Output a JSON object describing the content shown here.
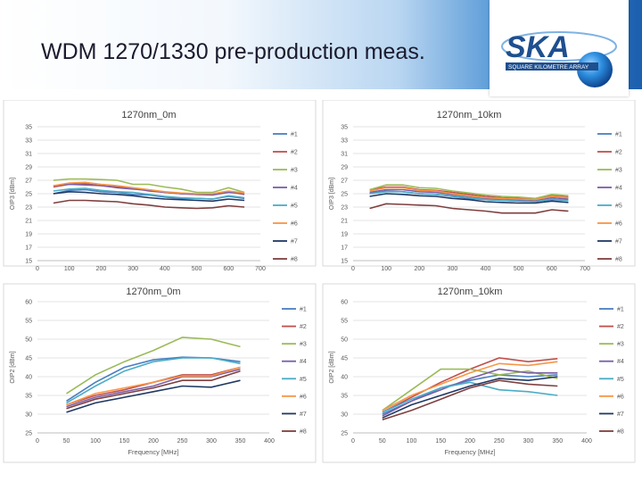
{
  "slide": {
    "title": "WDM 1270/1330 pre-production meas.",
    "logo_text": "SKA",
    "logo_subtext": "SQUARE KILOMETRE ARRAY"
  },
  "colors": {
    "series": [
      "#4a7fc1",
      "#c0504d",
      "#9bbb59",
      "#7b5ea7",
      "#4bacc6",
      "#f79646",
      "#1f3864",
      "#7f3f3f"
    ],
    "header_dark": "#1b5fae"
  },
  "chart_data": [
    {
      "type": "line",
      "title": "1270nm_0m",
      "xlabel": "",
      "ylabel": "OIP3 [dBm]",
      "xlim": [
        0,
        700
      ],
      "ylim": [
        15,
        35
      ],
      "xticks": [
        0,
        100,
        200,
        300,
        400,
        500,
        600,
        700
      ],
      "yticks": [
        15,
        17,
        19,
        21,
        23,
        25,
        27,
        29,
        31,
        33,
        35
      ],
      "grid": true,
      "legend": "right",
      "x": [
        50,
        100,
        150,
        200,
        250,
        300,
        350,
        400,
        450,
        500,
        550,
        600,
        650
      ],
      "series": [
        {
          "name": "#1",
          "values": [
            25.0,
            25.5,
            25.6,
            25.3,
            25.2,
            24.9,
            24.8,
            24.5,
            24.3,
            24.3,
            24.2,
            24.6,
            24.3
          ]
        },
        {
          "name": "#2",
          "values": [
            26.0,
            26.4,
            26.5,
            26.2,
            26.0,
            25.8,
            25.4,
            25.2,
            25.0,
            24.9,
            24.9,
            25.3,
            24.9
          ]
        },
        {
          "name": "#3",
          "values": [
            27.0,
            27.2,
            27.2,
            27.1,
            27.0,
            26.4,
            26.4,
            26.0,
            25.7,
            25.2,
            25.2,
            25.9,
            25.2
          ]
        },
        {
          "name": "#4",
          "values": [
            26.2,
            26.4,
            26.3,
            26.2,
            25.9,
            25.7,
            25.5,
            25.2,
            25.0,
            24.9,
            24.8,
            25.2,
            25.0
          ]
        },
        {
          "name": "#5",
          "values": [
            25.4,
            25.7,
            25.8,
            25.5,
            25.3,
            25.2,
            24.9,
            24.6,
            24.4,
            24.3,
            24.2,
            24.7,
            24.4
          ]
        },
        {
          "name": "#6",
          "values": [
            26.2,
            26.6,
            26.7,
            26.4,
            26.2,
            25.9,
            25.6,
            25.3,
            25.1,
            25.0,
            25.0,
            25.4,
            25.1
          ]
        },
        {
          "name": "#7",
          "values": [
            25.0,
            25.3,
            25.2,
            25.0,
            24.9,
            24.7,
            24.4,
            24.2,
            24.1,
            24.0,
            23.9,
            24.2,
            24.0
          ]
        },
        {
          "name": "#8",
          "values": [
            23.6,
            24.0,
            24.0,
            23.9,
            23.8,
            23.5,
            23.3,
            23.0,
            22.9,
            22.8,
            22.9,
            23.2,
            23.0
          ]
        }
      ]
    },
    {
      "type": "line",
      "title": "1270nm_10km",
      "xlabel": "",
      "ylabel": "OIP3 [dBm]",
      "xlim": [
        0,
        700
      ],
      "ylim": [
        15,
        35
      ],
      "xticks": [
        0,
        100,
        200,
        300,
        400,
        500,
        600,
        700
      ],
      "yticks": [
        15,
        17,
        19,
        21,
        23,
        25,
        27,
        29,
        31,
        33,
        35
      ],
      "grid": true,
      "legend": "right",
      "x": [
        50,
        100,
        150,
        200,
        250,
        300,
        350,
        400,
        450,
        500,
        550,
        600,
        650
      ],
      "series": [
        {
          "name": "#1",
          "values": [
            25.0,
            25.4,
            25.3,
            25.0,
            24.9,
            24.6,
            24.3,
            24.1,
            24.0,
            23.9,
            23.8,
            24.1,
            24.0
          ]
        },
        {
          "name": "#2",
          "values": [
            25.6,
            26.0,
            26.0,
            25.6,
            25.5,
            25.2,
            24.9,
            24.6,
            24.4,
            24.3,
            24.2,
            24.7,
            24.5
          ]
        },
        {
          "name": "#3",
          "values": [
            25.6,
            26.3,
            26.3,
            25.9,
            25.8,
            25.4,
            25.1,
            24.8,
            24.6,
            24.5,
            24.3,
            24.9,
            24.7
          ]
        },
        {
          "name": "#4",
          "values": [
            25.2,
            25.6,
            25.6,
            25.3,
            25.2,
            24.9,
            24.6,
            24.3,
            24.2,
            24.1,
            24.0,
            24.4,
            24.2
          ]
        },
        {
          "name": "#5",
          "values": [
            25.0,
            25.3,
            25.3,
            25.0,
            24.9,
            24.7,
            24.4,
            24.1,
            24.0,
            23.9,
            23.8,
            24.2,
            24.0
          ]
        },
        {
          "name": "#6",
          "values": [
            25.4,
            25.9,
            25.9,
            25.5,
            25.4,
            25.0,
            24.7,
            24.4,
            24.3,
            24.2,
            24.1,
            24.6,
            24.4
          ]
        },
        {
          "name": "#7",
          "values": [
            24.6,
            25.0,
            24.9,
            24.7,
            24.6,
            24.3,
            24.1,
            23.8,
            23.7,
            23.6,
            23.6,
            23.9,
            23.7
          ]
        },
        {
          "name": "#8",
          "values": [
            22.8,
            23.5,
            23.4,
            23.3,
            23.2,
            22.8,
            22.6,
            22.4,
            22.1,
            22.1,
            22.1,
            22.6,
            22.4
          ]
        }
      ]
    },
    {
      "type": "line",
      "title": "1270nm_0m",
      "xlabel": "Frequency [MHz]",
      "ylabel": "OIP2 [dBm]",
      "xlim": [
        0,
        400
      ],
      "ylim": [
        25,
        60
      ],
      "xticks": [
        0,
        50,
        100,
        150,
        200,
        250,
        300,
        350,
        400
      ],
      "yticks": [
        25,
        30,
        35,
        40,
        45,
        50,
        55,
        60
      ],
      "grid": true,
      "legend": "right",
      "x": [
        50,
        100,
        150,
        200,
        250,
        300,
        350
      ],
      "series": [
        {
          "name": "#1",
          "values": [
            33.5,
            38.5,
            42.5,
            44.5,
            45.2,
            45.0,
            44.0
          ]
        },
        {
          "name": "#2",
          "values": [
            32.5,
            35.0,
            36.5,
            38.5,
            40.5,
            40.5,
            42.5
          ]
        },
        {
          "name": "#3",
          "values": [
            35.5,
            40.5,
            44.0,
            47.0,
            50.5,
            50.0,
            48.0
          ]
        },
        {
          "name": "#4",
          "values": [
            32.0,
            34.5,
            36.0,
            37.5,
            40.0,
            40.0,
            42.0
          ]
        },
        {
          "name": "#5",
          "values": [
            33.0,
            37.5,
            41.5,
            44.0,
            45.0,
            45.0,
            43.5
          ]
        },
        {
          "name": "#6",
          "values": [
            32.5,
            35.5,
            37.0,
            38.5,
            40.2,
            40.2,
            42.5
          ]
        },
        {
          "name": "#7",
          "values": [
            30.5,
            33.0,
            34.5,
            36.0,
            37.5,
            37.2,
            39.0
          ]
        },
        {
          "name": "#8",
          "values": [
            31.5,
            34.0,
            35.5,
            37.0,
            39.0,
            39.0,
            41.5
          ]
        }
      ]
    },
    {
      "type": "line",
      "title": "1270nm_10km",
      "xlabel": "Frequency [MHz]",
      "ylabel": "OIP2 [dBm]",
      "xlim": [
        0,
        400
      ],
      "ylim": [
        25,
        60
      ],
      "xticks": [
        0,
        50,
        100,
        150,
        200,
        250,
        300,
        350,
        400
      ],
      "yticks": [
        25,
        30,
        35,
        40,
        45,
        50,
        55,
        60
      ],
      "grid": true,
      "legend": "right",
      "x": [
        50,
        100,
        150,
        200,
        250,
        300,
        350
      ],
      "series": [
        {
          "name": "#1",
          "values": [
            30.0,
            33.5,
            37.0,
            39.0,
            40.5,
            40.0,
            40.5
          ]
        },
        {
          "name": "#2",
          "values": [
            30.5,
            34.5,
            38.5,
            42.0,
            45.0,
            44.0,
            44.8
          ]
        },
        {
          "name": "#3",
          "values": [
            31.0,
            36.5,
            42.0,
            42.0,
            40.5,
            41.5,
            39.5
          ]
        },
        {
          "name": "#4",
          "values": [
            29.5,
            33.5,
            36.5,
            39.5,
            42.0,
            41.0,
            41.0
          ]
        },
        {
          "name": "#5",
          "values": [
            30.5,
            34.0,
            37.0,
            38.5,
            36.5,
            36.0,
            35.0
          ]
        },
        {
          "name": "#6",
          "values": [
            31.0,
            35.0,
            38.0,
            41.0,
            43.5,
            43.0,
            44.0
          ]
        },
        {
          "name": "#7",
          "values": [
            29.0,
            32.5,
            35.0,
            37.5,
            39.5,
            39.0,
            40.0
          ]
        },
        {
          "name": "#8",
          "values": [
            28.5,
            31.0,
            34.0,
            37.0,
            39.0,
            38.0,
            37.5
          ]
        }
      ]
    }
  ]
}
